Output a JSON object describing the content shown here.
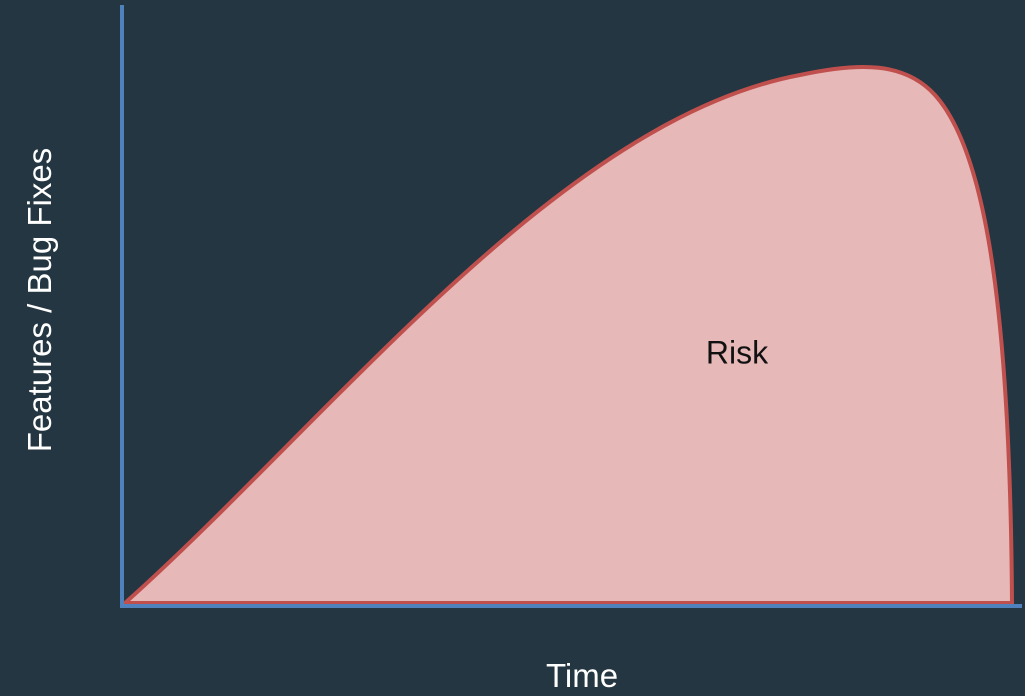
{
  "diagram": {
    "y_axis_label": "Features / Bug Fixes",
    "x_axis_label": "Time",
    "area_label": "Risk"
  },
  "colors": {
    "background": "#243641",
    "axis": "#4F81BD",
    "area_fill": "#E6B8B7",
    "area_stroke": "#C0504D"
  }
}
